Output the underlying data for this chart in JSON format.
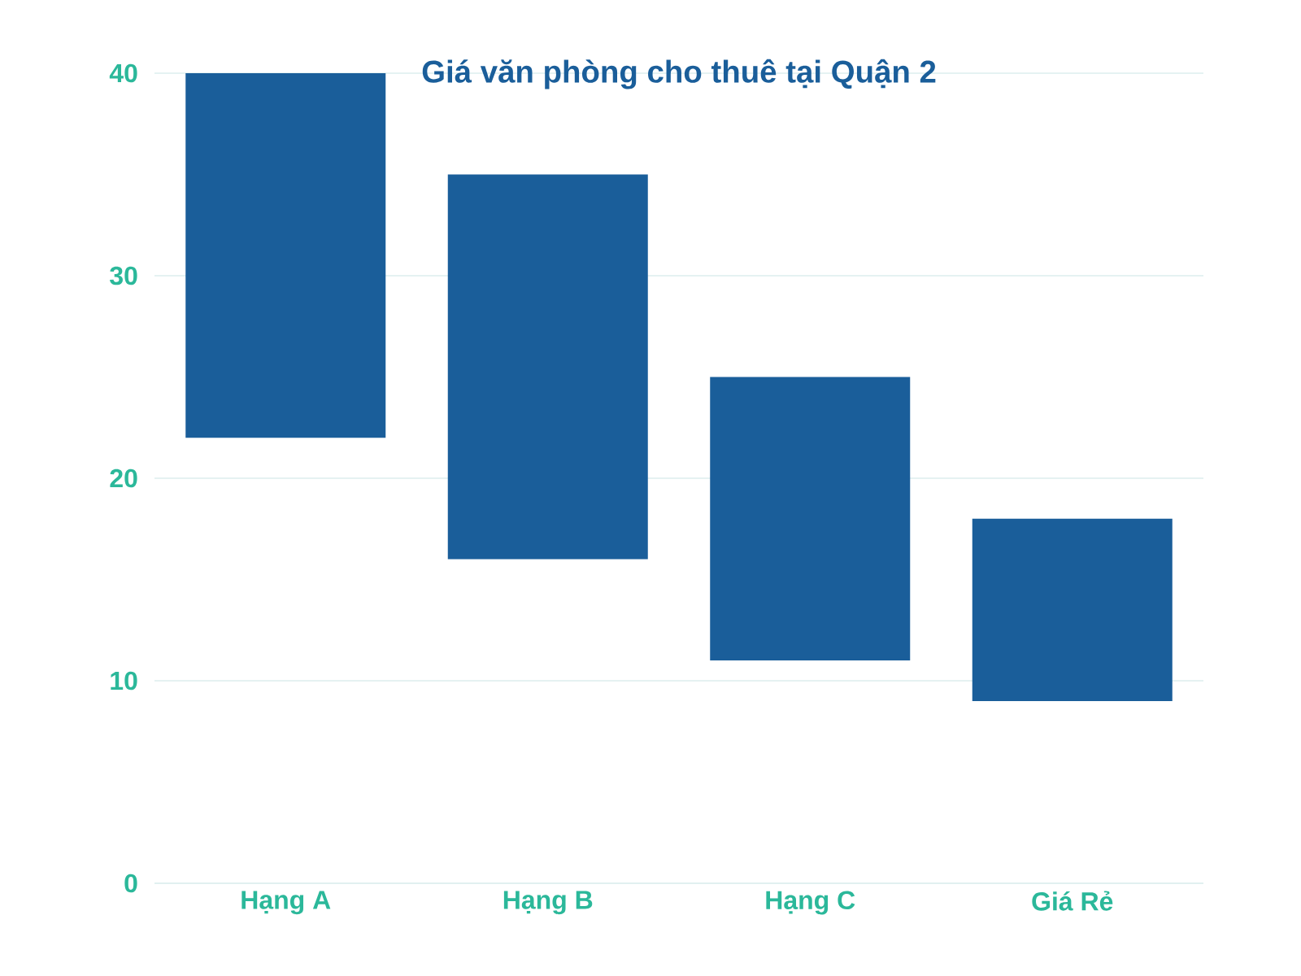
{
  "chart_data": {
    "type": "bar",
    "title": "Giá văn phòng cho thuê tại Quận 2",
    "categories": [
      "Hạng A",
      "Hạng B",
      "Hạng C",
      "Giá Rẻ"
    ],
    "base": [
      22,
      16,
      11,
      9
    ],
    "values": [
      18,
      19,
      14,
      9
    ],
    "color": "#1a5e9a",
    "ylim": [
      0,
      40
    ],
    "yticks": [
      0,
      10,
      20,
      30,
      40
    ],
    "grid": "y"
  }
}
